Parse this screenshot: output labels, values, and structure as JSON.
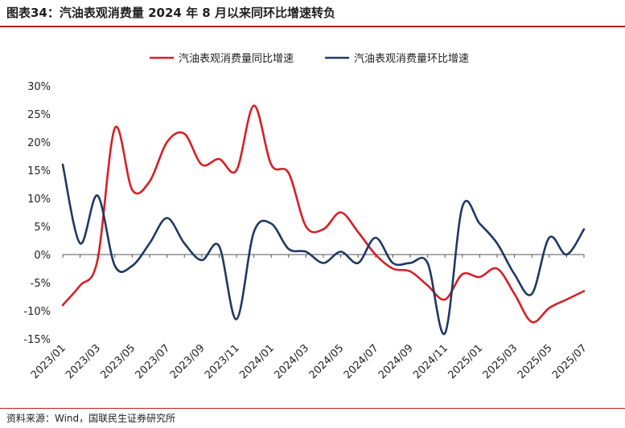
{
  "header": {
    "title": "图表34：汽油表观消费量 2024 年 8 月以来同环比增速转负"
  },
  "footer": {
    "source": "资料来源：Wind，国联民生证券研究所"
  },
  "chart_data": {
    "type": "line",
    "title": "图表34：汽油表观消费量 2024 年 8 月以来同环比增速转负",
    "xlabel": "",
    "ylabel": "",
    "unit": "%",
    "ylim": [
      -15,
      30
    ],
    "yticks": [
      "30%",
      "25%",
      "20%",
      "15%",
      "10%",
      "5%",
      "0%",
      "-5%",
      "-10%",
      "-15%"
    ],
    "ytick_values": [
      30,
      25,
      20,
      15,
      10,
      5,
      0,
      -5,
      -10,
      -15
    ],
    "legend_position": "top-center",
    "x": [
      "2023/01",
      "2023/02",
      "2023/03",
      "2023/04",
      "2023/05",
      "2023/06",
      "2023/07",
      "2023/08",
      "2023/09",
      "2023/10",
      "2023/11",
      "2023/12",
      "2024/01",
      "2024/02",
      "2024/03",
      "2024/04",
      "2024/05",
      "2024/06",
      "2024/07",
      "2024/08",
      "2024/09",
      "2024/10",
      "2024/11",
      "2024/12",
      "2025/01",
      "2025/02",
      "2025/03",
      "2025/04",
      "2025/05",
      "2025/06",
      "2025/07"
    ],
    "tick_labels": [
      "2023/01",
      "2023/03",
      "2023/05",
      "2023/07",
      "2023/09",
      "2023/11",
      "2024/01",
      "2024/03",
      "2024/05",
      "2024/07",
      "2024/09",
      "2024/11",
      "2025/01",
      "2025/03",
      "2025/05",
      "2025/07"
    ],
    "series": [
      {
        "name": "汽油表观消费量同比增速",
        "color": "#d71f26",
        "values": [
          -9,
          -5.5,
          -1,
          22.5,
          11.5,
          13,
          20,
          21.5,
          16,
          17,
          15,
          26.5,
          16,
          14.5,
          5,
          4.5,
          7.5,
          4,
          0,
          -2.5,
          -3,
          -5.5,
          -8,
          -3.5,
          -4,
          -2.5,
          -7,
          -12,
          -9.5,
          -8,
          -6.5
        ]
      },
      {
        "name": "汽油表观消费量环比增速",
        "color": "#1f3864",
        "values": [
          16,
          2,
          10.5,
          -2,
          -2,
          2,
          6.5,
          2,
          -1,
          1.5,
          -11.5,
          4,
          5.5,
          1,
          0.5,
          -1.5,
          0.5,
          -1.5,
          3,
          -1.5,
          -1.5,
          -1.5,
          -14,
          8.5,
          5.5,
          2,
          -3.5,
          -7,
          3,
          0,
          4.5
        ]
      }
    ]
  }
}
